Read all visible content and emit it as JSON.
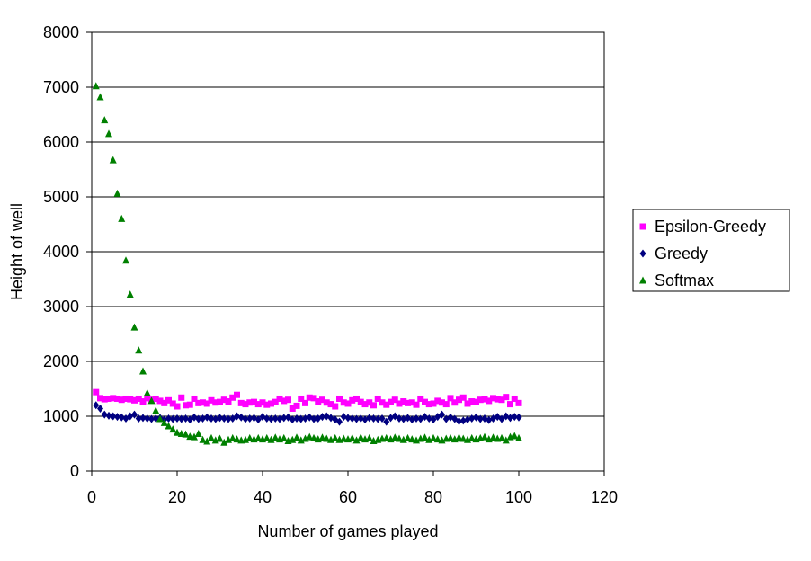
{
  "chart_data": {
    "type": "scatter",
    "title": "",
    "xlabel": "Number of games played",
    "ylabel": "Height of well",
    "xlim": [
      0,
      120
    ],
    "ylim": [
      0,
      8000
    ],
    "xticks": [
      "0",
      "20",
      "40",
      "60",
      "80",
      "100",
      "120"
    ],
    "yticks": [
      "0",
      "1000",
      "2000",
      "3000",
      "4000",
      "5000",
      "6000",
      "7000",
      "8000"
    ],
    "grid": "horizontal",
    "legend_position": "right",
    "series": [
      {
        "name": "Epsilon-Greedy",
        "marker": "square",
        "color": "#ff00ff",
        "x": [
          1,
          2,
          3,
          4,
          5,
          6,
          7,
          8,
          9,
          10,
          11,
          12,
          13,
          14,
          15,
          16,
          17,
          18,
          19,
          20,
          21,
          22,
          23,
          24,
          25,
          26,
          27,
          28,
          29,
          30,
          31,
          32,
          33,
          34,
          35,
          36,
          37,
          38,
          39,
          40,
          41,
          42,
          43,
          44,
          45,
          46,
          47,
          48,
          49,
          50,
          51,
          52,
          53,
          54,
          55,
          56,
          57,
          58,
          59,
          60,
          61,
          62,
          63,
          64,
          65,
          66,
          67,
          68,
          69,
          70,
          71,
          72,
          73,
          74,
          75,
          76,
          77,
          78,
          79,
          80,
          81,
          82,
          83,
          84,
          85,
          86,
          87,
          88,
          89,
          90,
          91,
          92,
          93,
          94,
          95,
          96,
          97,
          98,
          99,
          100
        ],
        "y": [
          1440,
          1330,
          1310,
          1320,
          1330,
          1320,
          1300,
          1320,
          1310,
          1290,
          1320,
          1270,
          1330,
          1300,
          1320,
          1280,
          1240,
          1290,
          1230,
          1180,
          1340,
          1200,
          1210,
          1320,
          1240,
          1250,
          1230,
          1290,
          1250,
          1260,
          1300,
          1270,
          1340,
          1390,
          1240,
          1220,
          1250,
          1260,
          1220,
          1250,
          1210,
          1230,
          1260,
          1320,
          1280,
          1300,
          1140,
          1190,
          1320,
          1240,
          1340,
          1330,
          1270,
          1300,
          1250,
          1220,
          1180,
          1320,
          1250,
          1230,
          1290,
          1320,
          1260,
          1220,
          1250,
          1200,
          1320,
          1250,
          1210,
          1260,
          1300,
          1230,
          1270,
          1240,
          1250,
          1210,
          1320,
          1260,
          1220,
          1230,
          1280,
          1250,
          1220,
          1330,
          1250,
          1300,
          1340,
          1230,
          1270,
          1260,
          1300,
          1310,
          1280,
          1330,
          1310,
          1300,
          1350,
          1220,
          1320,
          1240
        ]
      },
      {
        "name": "Greedy",
        "marker": "diamond",
        "color": "#000080",
        "x": [
          1,
          2,
          3,
          4,
          5,
          6,
          7,
          8,
          9,
          10,
          11,
          12,
          13,
          14,
          15,
          16,
          17,
          18,
          19,
          20,
          21,
          22,
          23,
          24,
          25,
          26,
          27,
          28,
          29,
          30,
          31,
          32,
          33,
          34,
          35,
          36,
          37,
          38,
          39,
          40,
          41,
          42,
          43,
          44,
          45,
          46,
          47,
          48,
          49,
          50,
          51,
          52,
          53,
          54,
          55,
          56,
          57,
          58,
          59,
          60,
          61,
          62,
          63,
          64,
          65,
          66,
          67,
          68,
          69,
          70,
          71,
          72,
          73,
          74,
          75,
          76,
          77,
          78,
          79,
          80,
          81,
          82,
          83,
          84,
          85,
          86,
          87,
          88,
          89,
          90,
          91,
          92,
          93,
          94,
          95,
          96,
          97,
          98,
          99,
          100
        ],
        "y": [
          1200,
          1140,
          1030,
          1010,
          1000,
          990,
          980,
          960,
          1000,
          1030,
          960,
          970,
          960,
          950,
          960,
          970,
          940,
          960,
          950,
          960,
          950,
          960,
          940,
          980,
          950,
          960,
          980,
          960,
          950,
          970,
          960,
          950,
          960,
          1000,
          980,
          950,
          960,
          970,
          940,
          990,
          960,
          950,
          960,
          950,
          970,
          980,
          940,
          960,
          950,
          960,
          980,
          950,
          960,
          990,
          1000,
          970,
          940,
          900,
          990,
          970,
          960,
          950,
          960,
          940,
          970,
          960,
          950,
          960,
          900,
          970,
          1000,
          960,
          950,
          970,
          940,
          960,
          950,
          990,
          960,
          940,
          990,
          1030,
          950,
          980,
          950,
          910,
          920,
          940,
          960,
          980,
          950,
          960,
          930,
          960,
          990,
          950,
          1000,
          970,
          990,
          980
        ]
      },
      {
        "name": "Softmax",
        "marker": "triangle",
        "color": "#008000",
        "x": [
          1,
          2,
          3,
          4,
          5,
          6,
          7,
          8,
          9,
          10,
          11,
          12,
          13,
          14,
          15,
          16,
          17,
          18,
          19,
          20,
          21,
          22,
          23,
          24,
          25,
          26,
          27,
          28,
          29,
          30,
          31,
          32,
          33,
          34,
          35,
          36,
          37,
          38,
          39,
          40,
          41,
          42,
          43,
          44,
          45,
          46,
          47,
          48,
          49,
          50,
          51,
          52,
          53,
          54,
          55,
          56,
          57,
          58,
          59,
          60,
          61,
          62,
          63,
          64,
          65,
          66,
          67,
          68,
          69,
          70,
          71,
          72,
          73,
          74,
          75,
          76,
          77,
          78,
          79,
          80,
          81,
          82,
          83,
          84,
          85,
          86,
          87,
          88,
          89,
          90,
          91,
          92,
          93,
          94,
          95,
          96,
          97,
          98,
          99,
          100
        ],
        "y": [
          7020,
          6820,
          6400,
          6150,
          5670,
          5060,
          4600,
          3840,
          3220,
          2620,
          2200,
          1820,
          1420,
          1280,
          1100,
          950,
          880,
          820,
          760,
          700,
          680,
          670,
          630,
          620,
          680,
          570,
          540,
          600,
          560,
          590,
          520,
          570,
          600,
          580,
          560,
          570,
          600,
          580,
          600,
          580,
          600,
          570,
          610,
          580,
          600,
          550,
          570,
          610,
          560,
          590,
          620,
          600,
          580,
          610,
          590,
          570,
          600,
          570,
          590,
          580,
          600,
          560,
          610,
          580,
          600,
          550,
          570,
          590,
          600,
          580,
          610,
          590,
          570,
          600,
          580,
          560,
          590,
          610,
          570,
          600,
          580,
          560,
          590,
          600,
          580,
          610,
          590,
          570,
          600,
          580,
          600,
          620,
          580,
          610,
          590,
          600,
          560,
          620,
          640,
          600
        ]
      }
    ]
  }
}
